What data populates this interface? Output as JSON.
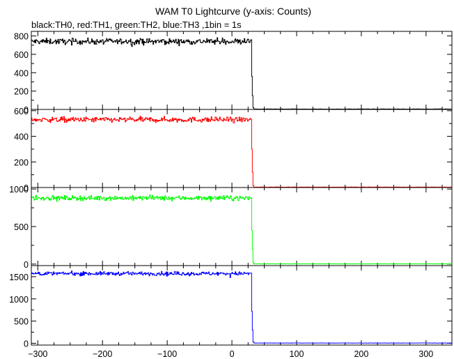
{
  "chart_data": {
    "type": "line",
    "title": "WAM T0 Lightcurve (y-axis: Counts)",
    "subtitle": "black:TH0, red:TH1, green:TH2, blue:TH3 ,1bin = 1s",
    "xlim": [
      -310,
      340
    ],
    "x_ticks": [
      -300,
      -200,
      -100,
      0,
      100,
      200,
      300
    ],
    "x_tick_labels": [
      "−300",
      "−200",
      "−100",
      "0",
      "100",
      "200",
      "300"
    ],
    "drop_x": 32,
    "panels": [
      {
        "series": "TH0",
        "color": "#000000",
        "ylim": [
          0,
          850
        ],
        "y_ticks": [
          0,
          200,
          400,
          600,
          800
        ],
        "level_before": 740,
        "noise": 30,
        "transition": [
          [
            30.5,
            360
          ],
          [
            31.5,
            150
          ],
          [
            32.5,
            20
          ]
        ],
        "level_after": 4
      },
      {
        "series": "TH1",
        "color": "#ff0000",
        "ylim": [
          0,
          610
        ],
        "y_ticks": [
          0,
          200,
          400,
          600
        ],
        "level_before": 530,
        "noise": 20,
        "transition": [
          [
            30.5,
            300
          ],
          [
            31.5,
            120
          ],
          [
            32.5,
            15
          ]
        ],
        "level_after": 3
      },
      {
        "series": "TH2",
        "color": "#00ff00",
        "ylim": [
          -20,
          1020
        ],
        "y_ticks": [
          0,
          500,
          1000
        ],
        "level_before": 880,
        "noise": 30,
        "transition": [
          [
            30.5,
            450
          ],
          [
            31.5,
            200
          ],
          [
            32.5,
            20
          ]
        ],
        "level_after": 3
      },
      {
        "series": "TH3",
        "color": "#0000ff",
        "ylim": [
          -40,
          1750
        ],
        "y_ticks": [
          0,
          500,
          1000,
          1500
        ],
        "level_before": 1570,
        "noise": 40,
        "transition": [
          [
            30.5,
            720
          ],
          [
            31.5,
            300
          ],
          [
            32.5,
            30
          ]
        ],
        "level_after": 5
      }
    ]
  }
}
